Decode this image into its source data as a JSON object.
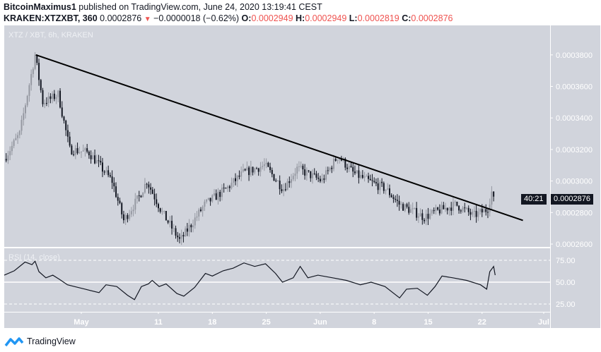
{
  "header": {
    "author": "BitcoinMaximus1",
    "published": "published on TradingView.com, June 24, 2020 13:19:41 CEST",
    "symbol": "KRAKEN:XTZXBT, 360",
    "last": "0.0002876",
    "change": "−0.0000018 (−0.62%)",
    "o_label": "O:",
    "o": "0.0002949",
    "h_label": "H:",
    "h": "0.0002949",
    "l_label": "L:",
    "l": "0.0002819",
    "c_label": "C:",
    "c": "0.0002876"
  },
  "watermark": "XTZ / XBT, 6h, KRAKEN",
  "rsi_label": "RSI (14, close)",
  "price_tag": "0.0002876",
  "countdown": "40:21",
  "brand": "TradingView",
  "colors": {
    "pane": "#d1d4dc",
    "candle_up": "#9598a1",
    "candle_down": "#131722",
    "trend": "#000000",
    "red": "#ef5350"
  },
  "chart_data": [
    {
      "type": "candlestick",
      "title": "XTZ / XBT, 6h, KRAKEN",
      "x_unit": "days since Apr 21 2020",
      "ylim": [
        0.000255,
        0.000398
      ],
      "yticks": [
        "0.0003800",
        "0.0003600",
        "0.0003400",
        "0.0003200",
        "0.0003000",
        "0.0002800",
        "0.0002600"
      ],
      "ytick_values": [
        0.00038,
        0.00036,
        0.00034,
        0.00032,
        0.0003,
        0.00028,
        0.00026
      ],
      "xticks": [
        {
          "label": "May",
          "day": 10
        },
        {
          "label": "11",
          "day": 20
        },
        {
          "label": "18",
          "day": 27
        },
        {
          "label": "25",
          "day": 34
        },
        {
          "label": "Jun",
          "day": 41
        },
        {
          "label": "8",
          "day": 48
        },
        {
          "label": "15",
          "day": 55
        },
        {
          "label": "22",
          "day": 62
        },
        {
          "label": "Jul",
          "day": 70
        }
      ],
      "xlim": [
        0,
        71
      ],
      "close_path": [
        [
          0,
          0.000314
        ],
        [
          2,
          0.00033
        ],
        [
          4,
          0.00038
        ],
        [
          5,
          0.00035
        ],
        [
          6,
          0.000352
        ],
        [
          7,
          0.000355
        ],
        [
          8.5,
          0.00032
        ],
        [
          11,
          0.000318
        ],
        [
          14,
          0.0003
        ],
        [
          15.5,
          0.000275
        ],
        [
          17.5,
          0.00029
        ],
        [
          18.5,
          0.0003
        ],
        [
          20.5,
          0.00028
        ],
        [
          22.8,
          0.000262
        ],
        [
          26,
          0.000285
        ],
        [
          28.8,
          0.000295
        ],
        [
          31,
          0.000305
        ],
        [
          33.8,
          0.00031
        ],
        [
          36.2,
          0.000295
        ],
        [
          38,
          0.000308
        ],
        [
          41.2,
          0.0003
        ],
        [
          43.3,
          0.000316
        ],
        [
          45.3,
          0.000305
        ],
        [
          47.2,
          0.0003
        ],
        [
          49.5,
          0.000295
        ],
        [
          51.3,
          0.000285
        ],
        [
          54.5,
          0.000277
        ],
        [
          56.3,
          0.000281
        ],
        [
          58.6,
          0.000285
        ],
        [
          60.9,
          0.000278
        ],
        [
          62.7,
          0.000282
        ],
        [
          63.3,
          0.000294
        ],
        [
          63.5,
          0.0002876
        ]
      ],
      "trendline": [
        [
          4.1,
          0.00038
        ],
        [
          67.3,
          0.000275
        ]
      ]
    },
    {
      "type": "line",
      "title": "RSI (14, close)",
      "ylim": [
        10,
        90
      ],
      "yticks": [
        "75.00",
        "50.00",
        "25.00"
      ],
      "ytick_values": [
        75,
        50,
        25
      ],
      "points": [
        [
          0,
          58
        ],
        [
          1.3,
          63
        ],
        [
          2.7,
          73
        ],
        [
          3.6,
          70
        ],
        [
          4.0,
          74
        ],
        [
          4.5,
          62
        ],
        [
          5.4,
          55
        ],
        [
          6.3,
          58
        ],
        [
          7.2,
          53
        ],
        [
          8.2,
          47
        ],
        [
          9.1,
          45
        ],
        [
          10.5,
          42
        ],
        [
          12.3,
          38
        ],
        [
          13.2,
          47
        ],
        [
          14.6,
          45
        ],
        [
          16,
          35
        ],
        [
          16.9,
          30
        ],
        [
          17.8,
          45
        ],
        [
          18.7,
          48
        ],
        [
          19.2,
          52
        ],
        [
          20.1,
          45
        ],
        [
          21,
          48
        ],
        [
          22.4,
          37
        ],
        [
          23.3,
          34
        ],
        [
          24.7,
          44
        ],
        [
          26.1,
          60
        ],
        [
          27,
          57
        ],
        [
          28.4,
          63
        ],
        [
          29.7,
          66
        ],
        [
          31.1,
          72
        ],
        [
          32.5,
          68
        ],
        [
          33.9,
          71
        ],
        [
          35.2,
          60
        ],
        [
          36.1,
          50
        ],
        [
          37.5,
          55
        ],
        [
          38.4,
          68
        ],
        [
          39.4,
          55
        ],
        [
          40.7,
          58
        ],
        [
          42.6,
          55
        ],
        [
          44.4,
          52
        ],
        [
          46.2,
          47
        ],
        [
          47.6,
          50
        ],
        [
          49.4,
          45
        ],
        [
          51.3,
          32
        ],
        [
          52.2,
          42
        ],
        [
          53.6,
          43
        ],
        [
          54.9,
          35
        ],
        [
          55.9,
          45
        ],
        [
          56.8,
          57
        ],
        [
          58.2,
          55
        ],
        [
          60,
          52
        ],
        [
          61.8,
          47
        ],
        [
          62.6,
          42
        ],
        [
          63,
          62
        ],
        [
          63.5,
          68
        ],
        [
          63.7,
          58
        ]
      ]
    }
  ]
}
